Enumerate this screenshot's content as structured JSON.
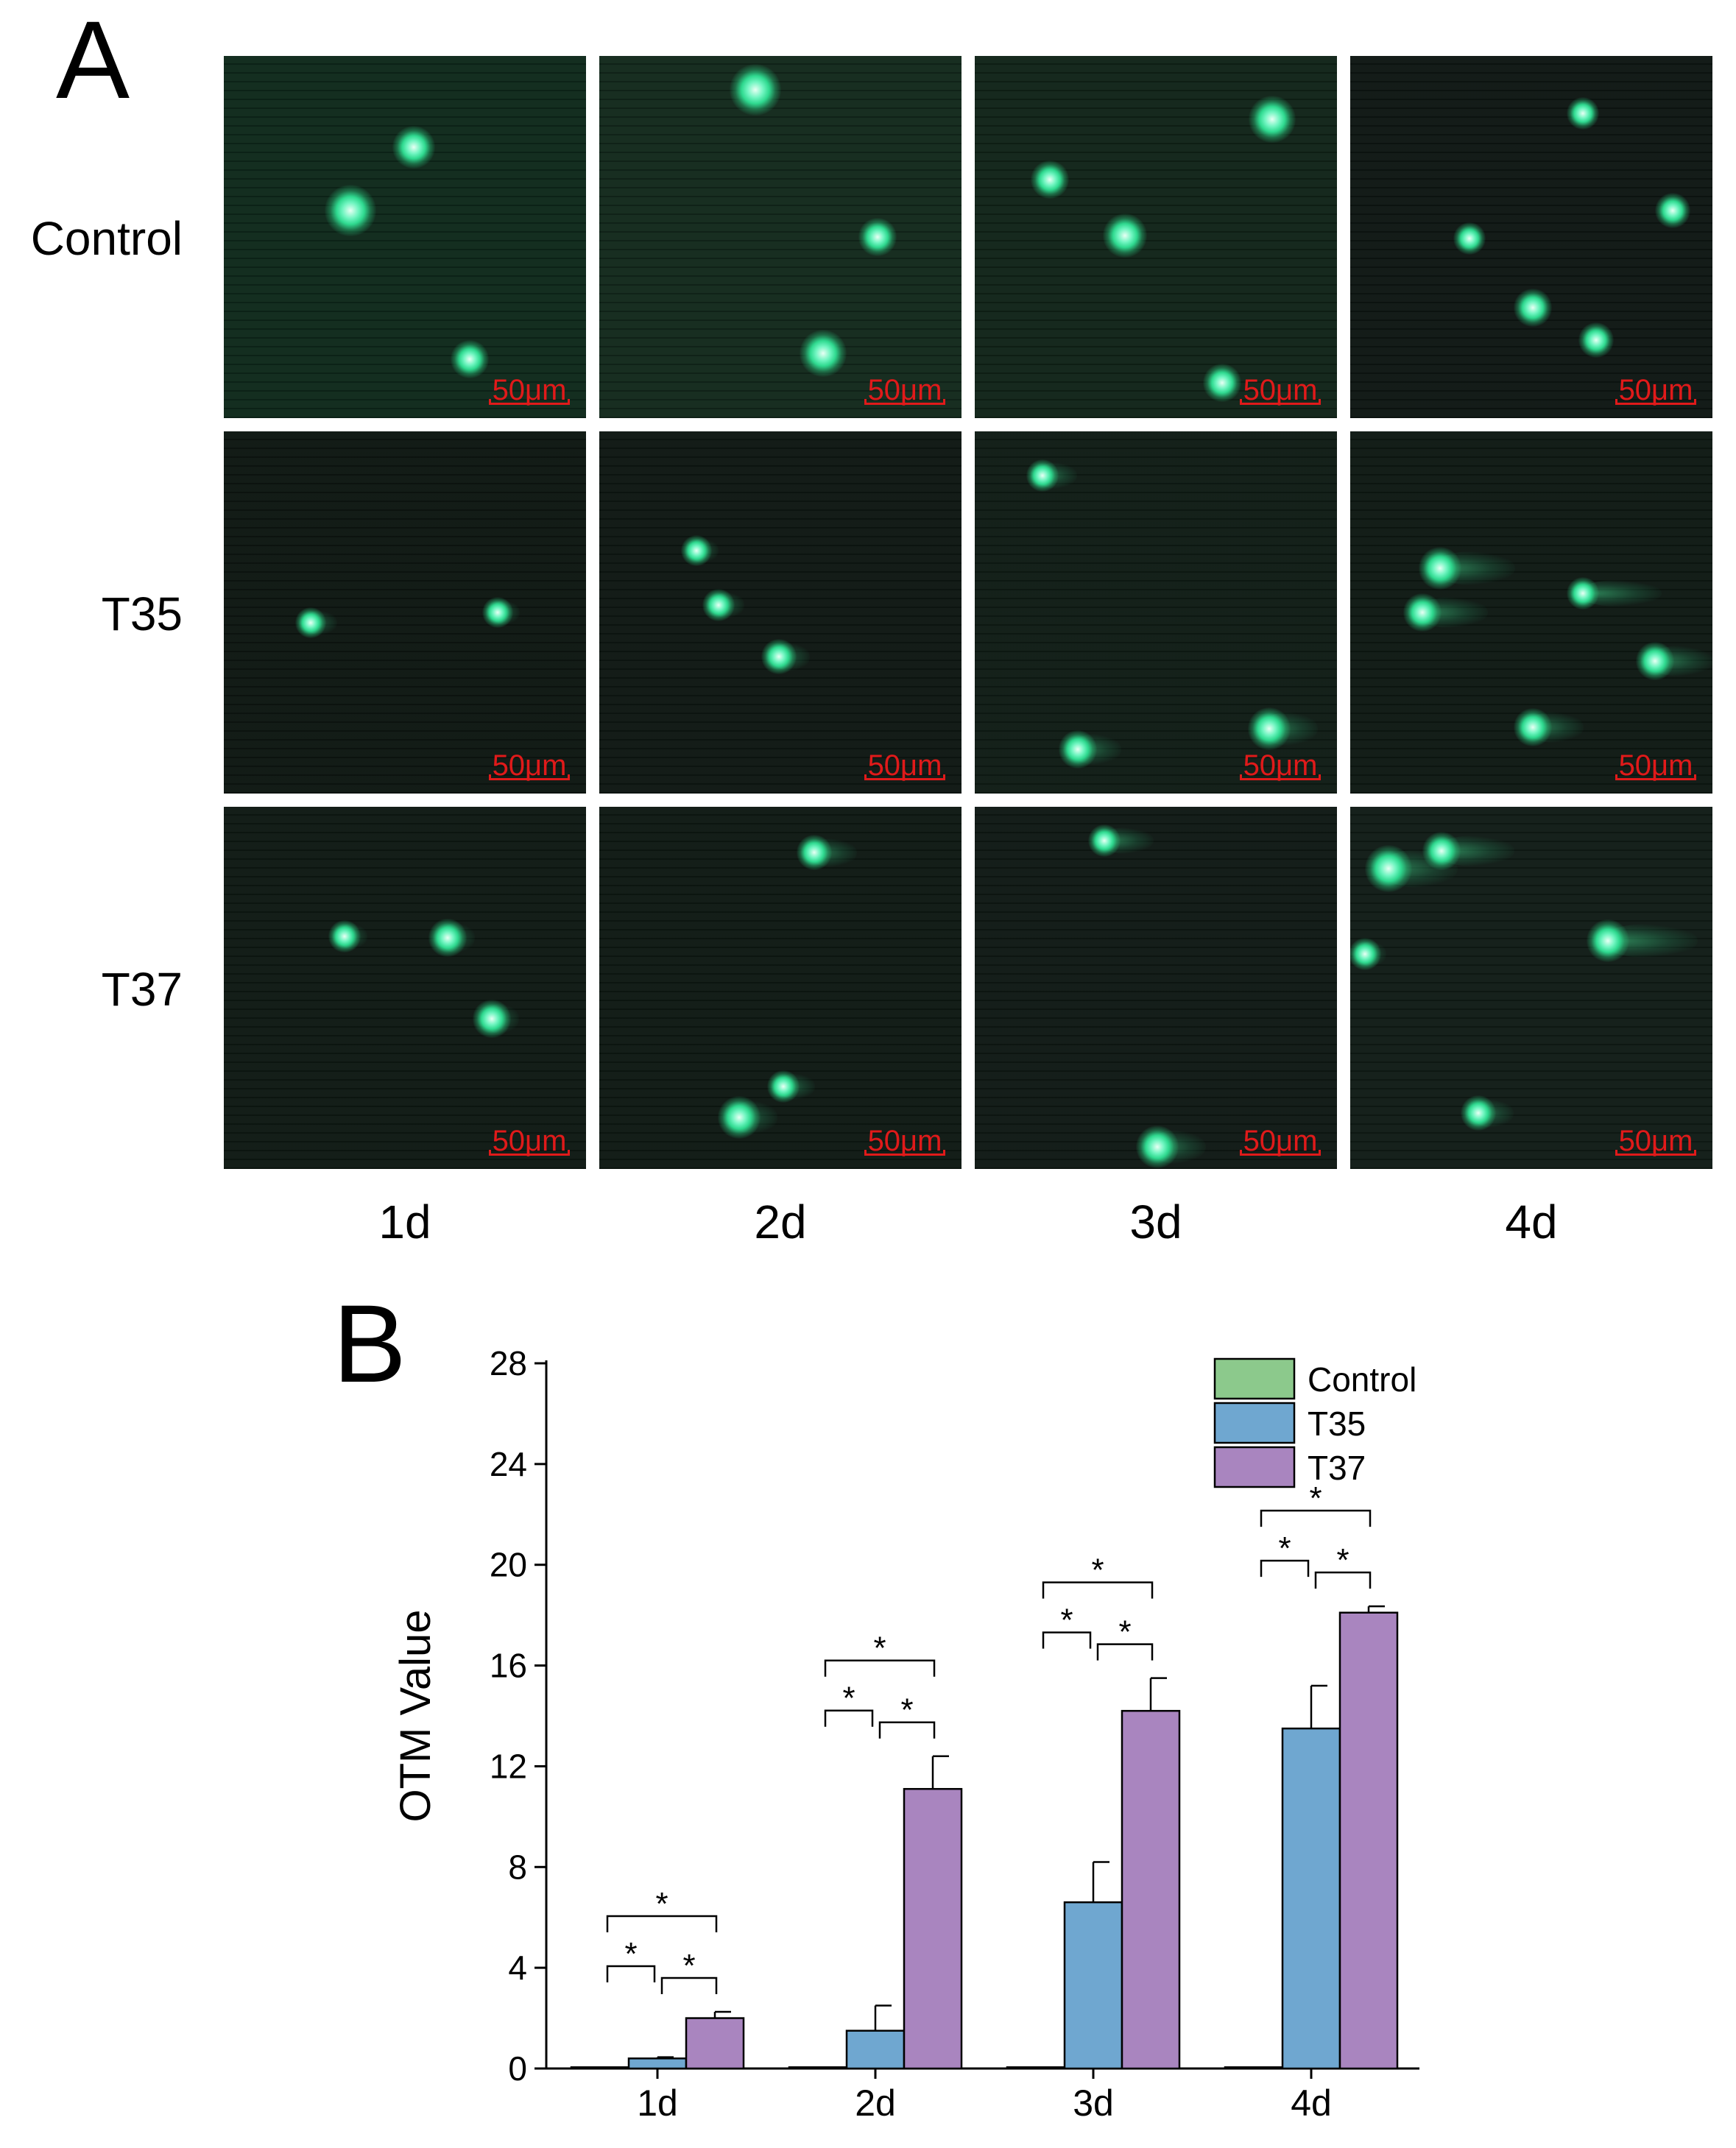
{
  "panel_a": {
    "letter": "A",
    "row_labels": [
      "Control",
      "T35",
      "T37"
    ],
    "col_labels": [
      "1d",
      "2d",
      "3d",
      "4d"
    ],
    "scale_label": "50μm"
  },
  "panel_b": {
    "letter": "B"
  },
  "chart_data": {
    "type": "bar",
    "categories": [
      "1d",
      "2d",
      "3d",
      "4d"
    ],
    "series": [
      {
        "name": "Control",
        "color": "#8cc98c",
        "values": [
          0.05,
          0.05,
          0.05,
          0.05
        ],
        "errors": [
          0,
          0,
          0,
          0
        ]
      },
      {
        "name": "T35",
        "color": "#6fa7d0",
        "values": [
          0.4,
          1.5,
          6.6,
          13.5
        ],
        "errors": [
          0.05,
          1.0,
          1.6,
          1.7
        ]
      },
      {
        "name": "T37",
        "color": "#a985bf",
        "values": [
          2.0,
          11.1,
          14.2,
          18.1
        ],
        "errors": [
          0.25,
          1.3,
          1.3,
          0.25
        ]
      }
    ],
    "ylabel": "OTM Value",
    "ylim": [
      0,
      28
    ],
    "yticks": [
      0,
      4,
      8,
      12,
      16,
      20,
      24,
      28
    ],
    "significance_marker": "*",
    "legend_position": "top-right"
  }
}
